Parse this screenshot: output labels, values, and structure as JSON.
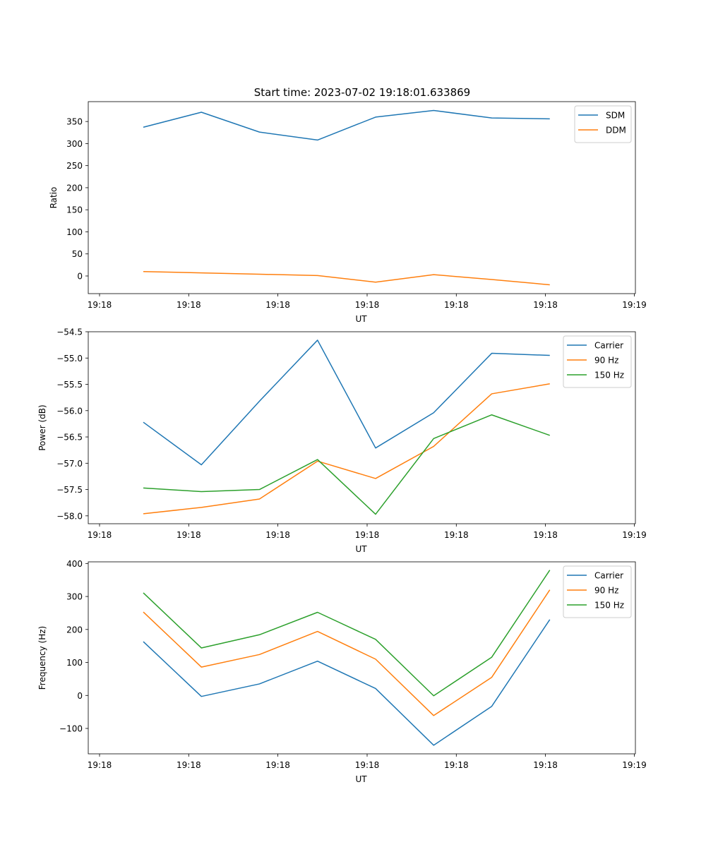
{
  "figure_title": "Start time: 2023-07-02 19:18:01.633869",
  "chart_data": [
    {
      "type": "line",
      "title": "Start time: 2023-07-02 19:18:01.633869",
      "xlabel": "UT",
      "ylabel": "Ratio",
      "x_tick_labels": [
        "19:18",
        "19:18",
        "19:18",
        "19:18",
        "19:18",
        "19:18",
        "19:19"
      ],
      "y_ticks": [
        0,
        50,
        100,
        150,
        200,
        250,
        300,
        350
      ],
      "y_tick_labels": [
        "0",
        "50",
        "100",
        "150",
        "200",
        "250",
        "300",
        "350"
      ],
      "ylim": [
        -40,
        395
      ],
      "xlim": [
        -0.75,
        8.5
      ],
      "x": [
        0,
        1,
        2,
        3,
        4,
        5,
        6,
        7
      ],
      "legend_position": "upper right",
      "series": [
        {
          "name": "SDM",
          "color": "#1f77b4",
          "values": [
            337,
            371,
            326,
            308,
            360,
            375,
            358,
            356
          ]
        },
        {
          "name": "DDM",
          "color": "#ff7f0e",
          "values": [
            10,
            7,
            4,
            1,
            -14,
            3,
            -8,
            -20
          ]
        }
      ]
    },
    {
      "type": "line",
      "title": "",
      "xlabel": "UT",
      "ylabel": "Power (dB)",
      "x_tick_labels": [
        "19:18",
        "19:18",
        "19:18",
        "19:18",
        "19:18",
        "19:18",
        "19:19"
      ],
      "y_ticks": [
        -58.0,
        -57.5,
        -57.0,
        -56.5,
        -56.0,
        -55.5,
        -55.0,
        -54.5
      ],
      "y_tick_labels": [
        "−58.0",
        "−57.5",
        "−57.0",
        "−56.5",
        "−56.0",
        "−55.5",
        "−55.0",
        "−54.5"
      ],
      "ylim": [
        -58.15,
        -54.5
      ],
      "xlim": [
        -0.75,
        8.5
      ],
      "x": [
        0,
        1,
        2,
        3,
        4,
        5,
        6,
        7
      ],
      "legend_position": "upper right",
      "series": [
        {
          "name": "Carrier",
          "color": "#1f77b4",
          "values": [
            -56.22,
            -57.03,
            -55.82,
            -54.66,
            -56.71,
            -56.04,
            -54.91,
            -54.95
          ]
        },
        {
          "name": "90 Hz",
          "color": "#ff7f0e",
          "values": [
            -57.96,
            -57.84,
            -57.68,
            -56.96,
            -57.29,
            -56.68,
            -55.68,
            -55.49
          ]
        },
        {
          "name": "150 Hz",
          "color": "#2ca02c",
          "values": [
            -57.47,
            -57.54,
            -57.5,
            -56.93,
            -57.97,
            -56.53,
            -56.08,
            -56.47
          ]
        }
      ]
    },
    {
      "type": "line",
      "title": "",
      "xlabel": "UT",
      "ylabel": "Frequency (Hz)",
      "x_tick_labels": [
        "19:18",
        "19:18",
        "19:18",
        "19:18",
        "19:18",
        "19:18",
        "19:19"
      ],
      "y_ticks": [
        -100,
        0,
        100,
        200,
        300,
        400
      ],
      "y_tick_labels": [
        "−100",
        "0",
        "100",
        "200",
        "300",
        "400"
      ],
      "ylim": [
        -177,
        405
      ],
      "xlim": [
        -0.75,
        8.5
      ],
      "x": [
        0,
        1,
        2,
        3,
        4,
        5,
        6,
        7
      ],
      "legend_position": "upper right",
      "series": [
        {
          "name": "Carrier",
          "color": "#1f77b4",
          "values": [
            163,
            -3,
            35,
            104,
            21,
            -151,
            -33,
            230
          ]
        },
        {
          "name": "90 Hz",
          "color": "#ff7f0e",
          "values": [
            253,
            86,
            124,
            194,
            110,
            -61,
            55,
            320
          ]
        },
        {
          "name": "150 Hz",
          "color": "#2ca02c",
          "values": [
            311,
            144,
            184,
            252,
            170,
            -1,
            116,
            380
          ]
        }
      ]
    }
  ]
}
